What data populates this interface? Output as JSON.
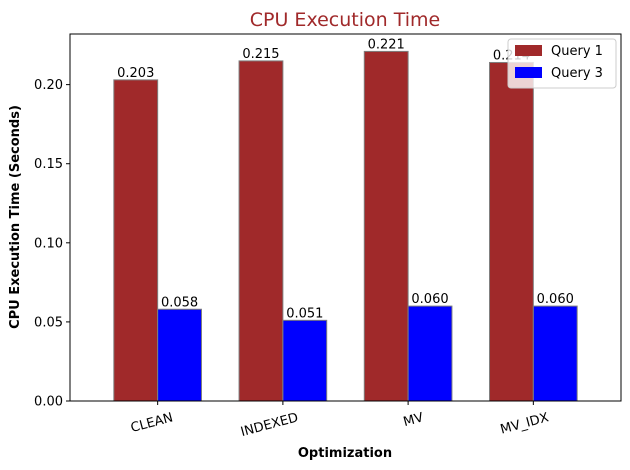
{
  "chart_data": {
    "type": "bar",
    "title": "CPU Execution Time",
    "xlabel": "Optimization",
    "ylabel": "CPU Execution Time (Seconds)",
    "categories": [
      "CLEAN",
      "INDEXED",
      "MV",
      "MV_IDX"
    ],
    "series": [
      {
        "name": "Query 1",
        "color": "#a0292a",
        "values": [
          0.203,
          0.215,
          0.221,
          0.214
        ]
      },
      {
        "name": "Query 3",
        "color": "#0000ff",
        "values": [
          0.058,
          0.051,
          0.06,
          0.06
        ]
      }
    ],
    "data_labels": [
      [
        "0.203",
        "0.215",
        "0.221",
        "0.214"
      ],
      [
        "0.058",
        "0.051",
        "0.060",
        "0.060"
      ]
    ],
    "ylim": [
      0,
      0.232
    ],
    "yticks": [
      0.0,
      0.05,
      0.1,
      0.15,
      0.2
    ],
    "ytick_labels": [
      "0.00",
      "0.05",
      "0.10",
      "0.15",
      "0.20"
    ],
    "grid": false,
    "legend_position": "top-right",
    "title_color": "#a0292a",
    "bar_edge_color": "#7f7f7f"
  }
}
